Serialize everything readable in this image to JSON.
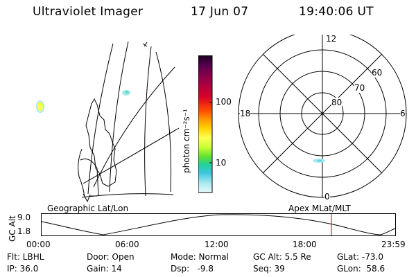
{
  "header": {
    "title": "Ultraviolet Imager",
    "date": "17 Jun 07",
    "time": "19:40:06 UT"
  },
  "colorbar": {
    "label": "photon cm⁻²s⁻¹",
    "ticks": [
      "100",
      "10"
    ],
    "colors": [
      "#1a0020",
      "#5a0050",
      "#9c0048",
      "#d8002a",
      "#ff4a00",
      "#ff9a00",
      "#ffd000",
      "#ffff50",
      "#c8ff30",
      "#60e030",
      "#20d0a0",
      "#40c8e0",
      "#a8e8f0",
      "#e8f8fc"
    ]
  },
  "geo_panel": {
    "label": "Geographic Lat/Lon"
  },
  "polar_panel": {
    "label": "Apex MLat/MLT",
    "mlt_labels": {
      "top": "12",
      "left": "18",
      "right": "6",
      "bottom": "0"
    },
    "lat_labels": [
      "60",
      "70",
      "80"
    ]
  },
  "orbit_plot": {
    "ylabel": "GC Alt",
    "ymax": "9.0",
    "ymin": "1.8",
    "x_ticks": [
      "00:00",
      "06:00",
      "12:00",
      "18:00",
      "23:59"
    ],
    "current_time_marker": "19:40",
    "marker_color": "#cc0000"
  },
  "info": {
    "row1": {
      "flt": "Flt: LBHL",
      "door": "Door: Open",
      "mode": "Mode: Normal",
      "gcalt": "GC Alt: 5.5 Re",
      "glat": "GLat: -73.0"
    },
    "row2": {
      "ip": "IP: 36.0",
      "gain": "Gain: 14",
      "dsp": "Dsp:   -9.8",
      "seq": "Seq: 39",
      "glon": "GLon:  58.6"
    }
  }
}
